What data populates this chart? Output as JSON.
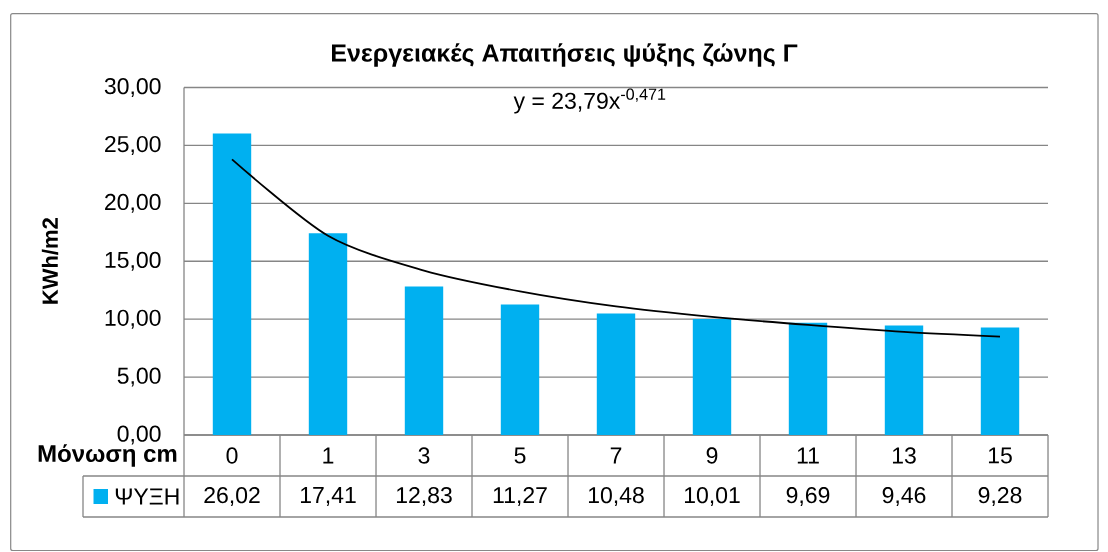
{
  "chart_data": {
    "type": "bar",
    "title": "Ενεργειακές Απαιτήσεις ψύξης ζώνης Γ",
    "xlabel": "Μόνωση cm",
    "ylabel": "KWh/m2",
    "categories": [
      "0",
      "1",
      "3",
      "5",
      "7",
      "9",
      "11",
      "13",
      "15"
    ],
    "series": [
      {
        "name": "ΨΥΞΗ",
        "color": "#00b0f0",
        "values": [
          26.02,
          17.41,
          12.83,
          11.27,
          10.48,
          10.01,
          9.69,
          9.46,
          9.28
        ],
        "value_labels": [
          "26,02",
          "17,41",
          "12,83",
          "11,27",
          "10,48",
          "10,01",
          "9,69",
          "9,46",
          "9,28"
        ]
      },
      {
        "type": "line",
        "color": "#000000",
        "values": [
          23.8,
          17.2,
          14.2,
          12.4,
          11.1,
          10.2,
          9.5,
          8.9,
          8.5
        ]
      }
    ],
    "ylim": [
      0,
      30
    ],
    "yticks": [
      {
        "value": 0,
        "label": "0,00"
      },
      {
        "value": 5,
        "label": "5,00"
      },
      {
        "value": 10,
        "label": "10,00"
      },
      {
        "value": 15,
        "label": "15,00"
      },
      {
        "value": 20,
        "label": "20,00"
      },
      {
        "value": 25,
        "label": "25,00"
      },
      {
        "value": 30,
        "label": "30,00"
      }
    ],
    "grid": "y",
    "legend": "bottom",
    "annotations": [
      "y = 23,79x$^{-0,471}$"
    ]
  }
}
